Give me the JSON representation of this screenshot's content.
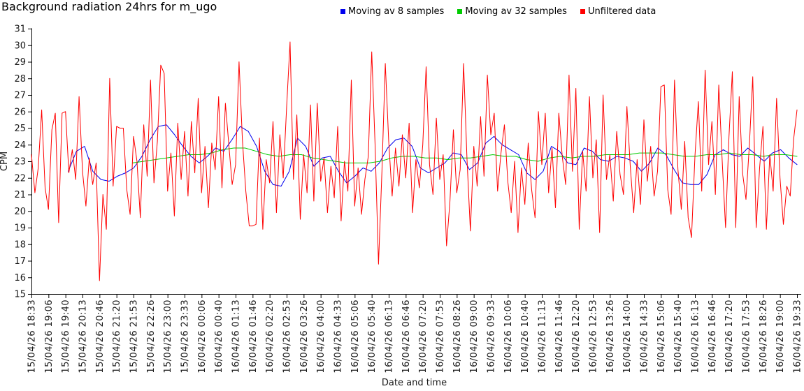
{
  "title": "Background radiation 24hrs for m_ugo",
  "legend": [
    {
      "label": "Moving av 8 samples",
      "color": "#0000ee"
    },
    {
      "label": "Moving av 32 samples",
      "color": "#00cc00"
    },
    {
      "label": "Unfiltered data",
      "color": "#ff0000"
    }
  ],
  "axis_color": "#000000",
  "tick_label_color": "#1a1a1a",
  "chart_data": {
    "type": "line",
    "title": "Background radiation 24hrs for m_ugo",
    "xlabel": "Date and time",
    "ylabel": "CPM",
    "ylim": [
      15,
      31
    ],
    "ytick_step": 1,
    "grid": false,
    "legend_position": "top",
    "x_tick_labels": [
      "15/04/26 18:33",
      "15/04/26 19:06",
      "15/04/26 19:40",
      "15/04/26 20:13",
      "15/04/26 20:46",
      "15/04/26 21:20",
      "15/04/26 21:53",
      "15/04/26 22:26",
      "15/04/26 23:00",
      "15/04/26 23:33",
      "16/04/26 00:06",
      "16/04/26 00:40",
      "16/04/26 01:13",
      "16/04/26 01:46",
      "16/04/26 02:20",
      "16/04/26 02:53",
      "16/04/26 03:26",
      "16/04/26 04:00",
      "16/04/26 04:33",
      "16/04/26 05:06",
      "16/04/26 05:40",
      "16/04/26 06:13",
      "16/04/26 06:46",
      "16/04/26 07:20",
      "16/04/26 07:53",
      "16/04/26 08:26",
      "16/04/26 09:00",
      "16/04/26 09:33",
      "16/04/26 10:06",
      "16/04/26 10:40",
      "16/04/26 11:13",
      "16/04/26 11:46",
      "16/04/26 12:20",
      "16/04/26 12:53",
      "16/04/26 13:26",
      "16/04/26 14:00",
      "16/04/26 14:33",
      "16/04/26 15:06",
      "16/04/26 15:40",
      "16/04/26 16:13",
      "16/04/26 16:46",
      "16/04/26 17:20",
      "16/04/26 17:53",
      "16/04/26 18:26",
      "16/04/26 19:00",
      "16/04/26 19:33"
    ],
    "series": [
      {
        "name": "Moving av 8 samples",
        "color": "#0000ee",
        "x_start_frac": 0.048,
        "values": [
          22.4,
          23.6,
          23.9,
          22.4,
          21.9,
          21.8,
          22.1,
          22.3,
          22.6,
          23.3,
          24.3,
          25.1,
          25.2,
          24.6,
          23.9,
          23.3,
          22.9,
          23.3,
          23.8,
          23.6,
          24.3,
          25.1,
          24.8,
          23.9,
          22.4,
          21.6,
          21.5,
          22.4,
          24.4,
          23.9,
          22.7,
          23.2,
          23.3,
          22.4,
          21.7,
          22.1,
          22.6,
          22.4,
          22.9,
          23.8,
          24.3,
          24.4,
          23.9,
          22.6,
          22.3,
          22.6,
          22.9,
          23.5,
          23.4,
          22.5,
          22.9,
          24.1,
          24.5,
          24.0,
          23.7,
          23.4,
          22.3,
          21.9,
          22.4,
          23.9,
          23.6,
          22.9,
          22.8,
          23.8,
          23.6,
          23.1,
          23.0,
          23.3,
          23.2,
          23.0,
          22.4,
          22.9,
          23.8,
          23.4,
          22.5,
          21.7,
          21.6,
          21.6,
          22.2,
          23.4,
          23.7,
          23.4,
          23.3,
          23.8,
          23.4,
          23.0,
          23.5,
          23.7,
          23.2,
          22.8
        ]
      },
      {
        "name": "Moving av 32 samples",
        "color": "#00cc00",
        "x_start_frac": 0.132,
        "values": [
          22.9,
          23.0,
          23.1,
          23.2,
          23.3,
          23.4,
          23.4,
          23.5,
          23.7,
          23.8,
          23.8,
          23.6,
          23.4,
          23.3,
          23.4,
          23.4,
          23.2,
          23.1,
          23.0,
          22.9,
          22.9,
          22.9,
          23.0,
          23.2,
          23.3,
          23.3,
          23.2,
          23.2,
          23.1,
          23.2,
          23.2,
          23.3,
          23.4,
          23.3,
          23.3,
          23.1,
          23.0,
          23.2,
          23.3,
          23.2,
          23.3,
          23.3,
          23.4,
          23.4,
          23.4,
          23.5,
          23.5,
          23.5,
          23.4,
          23.3,
          23.3,
          23.4,
          23.4,
          23.5,
          23.4,
          23.4,
          23.3,
          23.4,
          23.4,
          23.3
        ]
      },
      {
        "name": "Unfiltered data",
        "color": "#ff0000",
        "x_start_frac": 0.0,
        "values": [
          23.4,
          21.1,
          22.6,
          26.1,
          21.4,
          20.1,
          24.9,
          25.9,
          19.3,
          25.9,
          26.0,
          22.3,
          23.7,
          21.9,
          26.9,
          22.4,
          20.3,
          23.2,
          21.6,
          22.9,
          15.8,
          21.0,
          18.9,
          28.0,
          21.5,
          25.1,
          25.0,
          25.0,
          21.3,
          19.8,
          24.5,
          23.0,
          19.6,
          25.2,
          22.1,
          27.9,
          21.7,
          24.2,
          28.8,
          28.3,
          21.2,
          23.5,
          19.7,
          25.3,
          21.9,
          24.8,
          20.9,
          25.4,
          22.3,
          26.8,
          21.1,
          23.9,
          20.2,
          24.1,
          22.5,
          26.9,
          21.4,
          26.5,
          24.0,
          21.6,
          22.8,
          29.0,
          24.3,
          21.2,
          19.1,
          19.1,
          19.2,
          24.4,
          18.9,
          23.1,
          21.7,
          25.4,
          19.9,
          24.6,
          22.0,
          26.3,
          30.2,
          21.9,
          25.8,
          19.5,
          23.4,
          21.1,
          26.4,
          20.6,
          26.5,
          21.8,
          23.2,
          19.9,
          22.7,
          20.8,
          25.1,
          19.4,
          23.0,
          21.2,
          27.9,
          20.3,
          22.6,
          19.8,
          21.9,
          23.3,
          29.6,
          24.0,
          16.8,
          22.4,
          28.9,
          24.2,
          20.9,
          23.8,
          21.5,
          24.6,
          22.0,
          25.3,
          19.9,
          23.1,
          21.4,
          24.0,
          28.7,
          22.8,
          21.0,
          25.6,
          21.9,
          23.4,
          17.9,
          20.6,
          24.9,
          21.1,
          22.5,
          28.9,
          23.2,
          18.8,
          23.9,
          21.5,
          25.7,
          22.1,
          28.2,
          24.6,
          25.9,
          21.2,
          23.5,
          25.2,
          21.8,
          19.9,
          23.0,
          18.7,
          22.6,
          20.4,
          24.1,
          21.3,
          19.6,
          26.0,
          22.8,
          25.9,
          21.1,
          23.8,
          20.2,
          25.9,
          23.3,
          21.6,
          28.2,
          22.4,
          27.4,
          18.9,
          23.6,
          21.2,
          26.9,
          22.0,
          24.3,
          18.7,
          27.0,
          21.9,
          23.4,
          20.6,
          24.8,
          22.2,
          21.0,
          26.3,
          22.7,
          19.9,
          23.1,
          20.4,
          25.5,
          21.8,
          23.9,
          20.9,
          22.4,
          27.5,
          27.6,
          21.3,
          19.8,
          27.9,
          22.5,
          20.1,
          24.2,
          19.6,
          18.4,
          23.3,
          26.6,
          21.2,
          28.5,
          22.8,
          25.4,
          21.0,
          27.6,
          23.1,
          19.0,
          24.5,
          28.4,
          19.0,
          26.9,
          22.3,
          20.7,
          24.0,
          28.1,
          19.0,
          22.6,
          25.1,
          18.9,
          23.4,
          21.2,
          26.8,
          22.0,
          19.2,
          21.5,
          20.9,
          24.3,
          26.1
        ]
      }
    ]
  }
}
